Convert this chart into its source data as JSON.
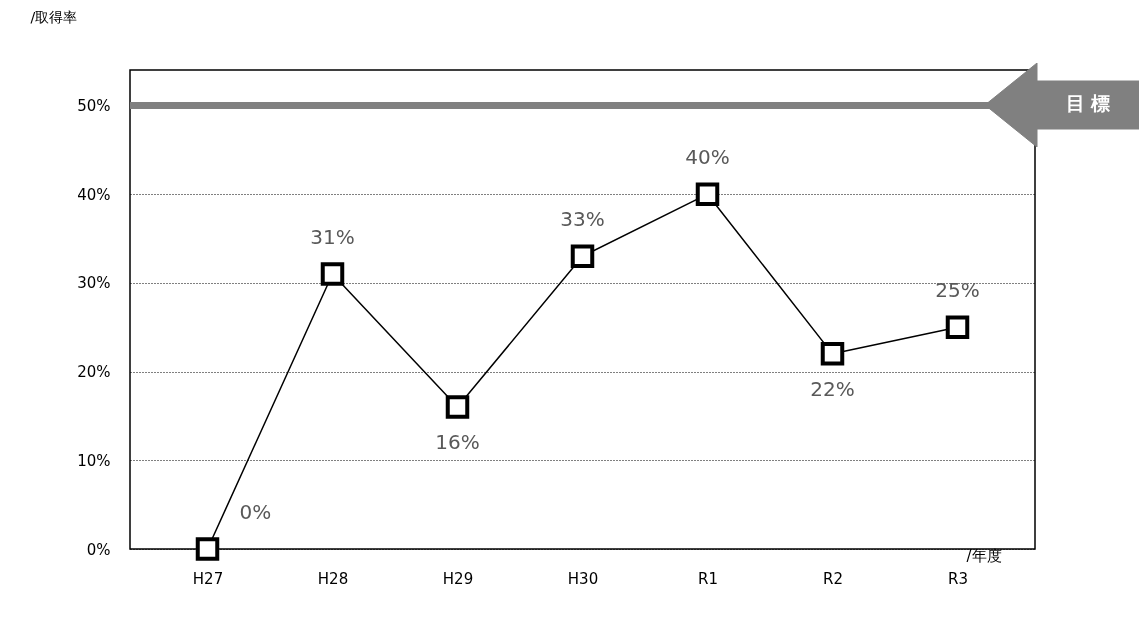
{
  "chart_data": {
    "type": "line",
    "xlabel": "/年度",
    "ylabel": "/取得率",
    "categories": [
      "H27",
      "H28",
      "H29",
      "H30",
      "R1",
      "R2",
      "R3"
    ],
    "series": [
      {
        "color": "#000000",
        "values": [
          0,
          31,
          16,
          33,
          40,
          22,
          25
        ],
        "value_labels": [
          "0%",
          "31%",
          "16%",
          "33%",
          "40%",
          "22%",
          "25%"
        ]
      }
    ],
    "ylim": [
      0,
      54
    ],
    "yticks": [
      {
        "value": 0,
        "label": "0%"
      },
      {
        "value": 10,
        "label": "10%"
      },
      {
        "value": 20,
        "label": "20%"
      },
      {
        "value": 30,
        "label": "30%"
      },
      {
        "value": 40,
        "label": "40%"
      },
      {
        "value": 50,
        "label": "50%"
      }
    ],
    "ref_lines": [
      {
        "axis": "y",
        "value": 50,
        "label": "目 標",
        "color": "#808080"
      }
    ],
    "grid": "y",
    "marker": "square",
    "line_style": "solid"
  }
}
